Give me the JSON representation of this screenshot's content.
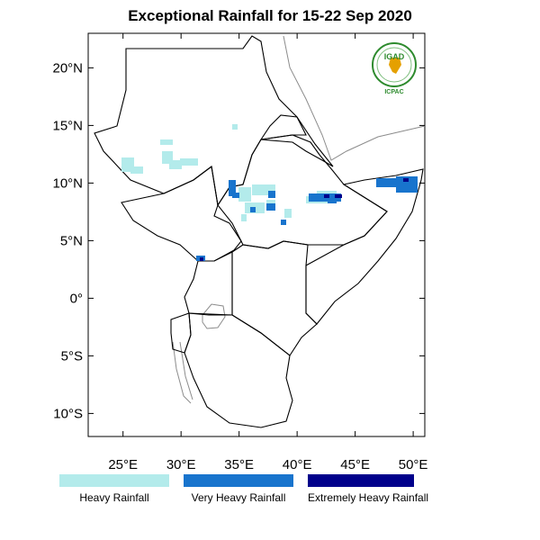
{
  "title": "Exceptional Rainfall for 15-22 Sep 2020",
  "map": {
    "lon_range": [
      22,
      51
    ],
    "lat_range": [
      -12,
      23
    ],
    "lat_ticks": [
      {
        "value": 20,
        "label": "20°N"
      },
      {
        "value": 15,
        "label": "15°N"
      },
      {
        "value": 10,
        "label": "10°N"
      },
      {
        "value": 5,
        "label": "5°N"
      },
      {
        "value": 0,
        "label": "0°"
      },
      {
        "value": -5,
        "label": "5°S"
      },
      {
        "value": -10,
        "label": "10°S"
      }
    ],
    "lon_ticks": [
      {
        "value": 25,
        "label": "25°E"
      },
      {
        "value": 30,
        "label": "30°E"
      },
      {
        "value": 35,
        "label": "35°E"
      },
      {
        "value": 40,
        "label": "40°E"
      },
      {
        "value": 45,
        "label": "45°E"
      },
      {
        "value": 50,
        "label": "50°E"
      }
    ]
  },
  "legend": [
    {
      "label": "Heavy Rainfall",
      "color": "#b3ebeb"
    },
    {
      "label": "Very Heavy Rainfall",
      "color": "#1874cd"
    },
    {
      "label": "Extremely Heavy Rainfall",
      "color": "#00008b"
    }
  ],
  "logo": {
    "name": "IGAD",
    "sub": "ICPAC"
  }
}
